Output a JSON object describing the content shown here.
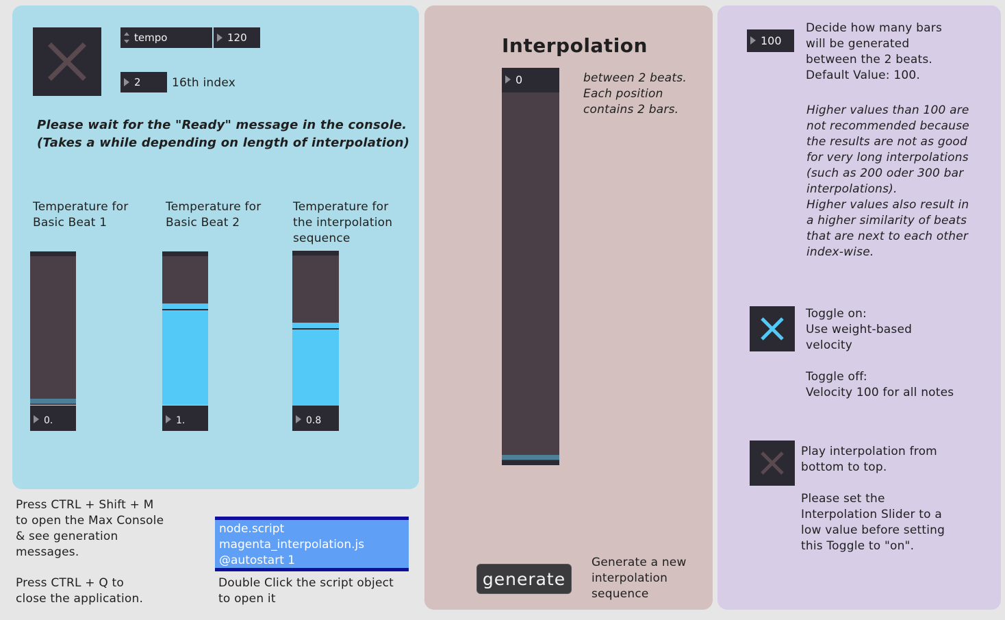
{
  "left_panel": {
    "tempo_label": "tempo",
    "tempo_value": "120",
    "index_value": "2",
    "index_label": "16th index",
    "wait_message": "Please wait for the \"Ready\" message in the console.\n(Takes a while depending on length of interpolation)",
    "sliders": [
      {
        "label": "Temperature for\nBasic Beat 1",
        "value": "0.",
        "fill_fraction": 0.0
      },
      {
        "label": "Temperature for\nBasic Beat 2",
        "value": "1.",
        "fill_fraction": 0.66
      },
      {
        "label": "Temperature for\nthe interpolation\nsequence",
        "value": "0.8",
        "fill_fraction": 0.55
      }
    ]
  },
  "console_help": "Press CTRL + Shift + M\nto open the Max Console\n& see generation\nmessages.",
  "quit_help": "Press CTRL + Q to\nclose the application.",
  "script_object": "node.script\nmagenta_interpolation.js\n@autostart 1",
  "script_help": "Double Click the script object\nto open it",
  "middle_panel": {
    "title": "Interpolation",
    "slider_value": "0",
    "slider_fraction": 0.0,
    "slider_note": "between 2 beats.\nEach position\ncontains 2 bars.",
    "generate_label": "generate",
    "generate_help": "Generate a new\ninterpolation\nsequence"
  },
  "right_panel": {
    "bars_value": "100",
    "bars_help": "Decide how many bars\nwill be generated\nbetween the 2 beats.\nDefault Value: 100.",
    "bars_note": "Higher values than 100 are\nnot recommended because\nthe results are not as good\nfor very long interpolations\n(such as 200 oder 300 bar\ninterpolations).\nHigher values also result in\na higher similarity of beats\nthat are next to each other\nindex-wise.",
    "velocity_toggle_on": true,
    "velocity_help": "Toggle on:\nUse weight-based\nvelocity\n\nToggle off:\nVelocity 100 for all notes",
    "play_toggle_on": false,
    "play_help": "Play interpolation from\nbottom to top.\n\nPlease set the\nInterpolation Slider to a\nlow value before setting\nthis Toggle to \"on\"."
  },
  "colors": {
    "left_panel_bg": "#acdce9",
    "middle_panel_bg": "#d4c0bf",
    "right_panel_bg": "#d7cde7",
    "slider_fill": "#52c9f7",
    "toggle_on_x": "#52c9f7",
    "toggle_off_x": "#5a4a50"
  }
}
